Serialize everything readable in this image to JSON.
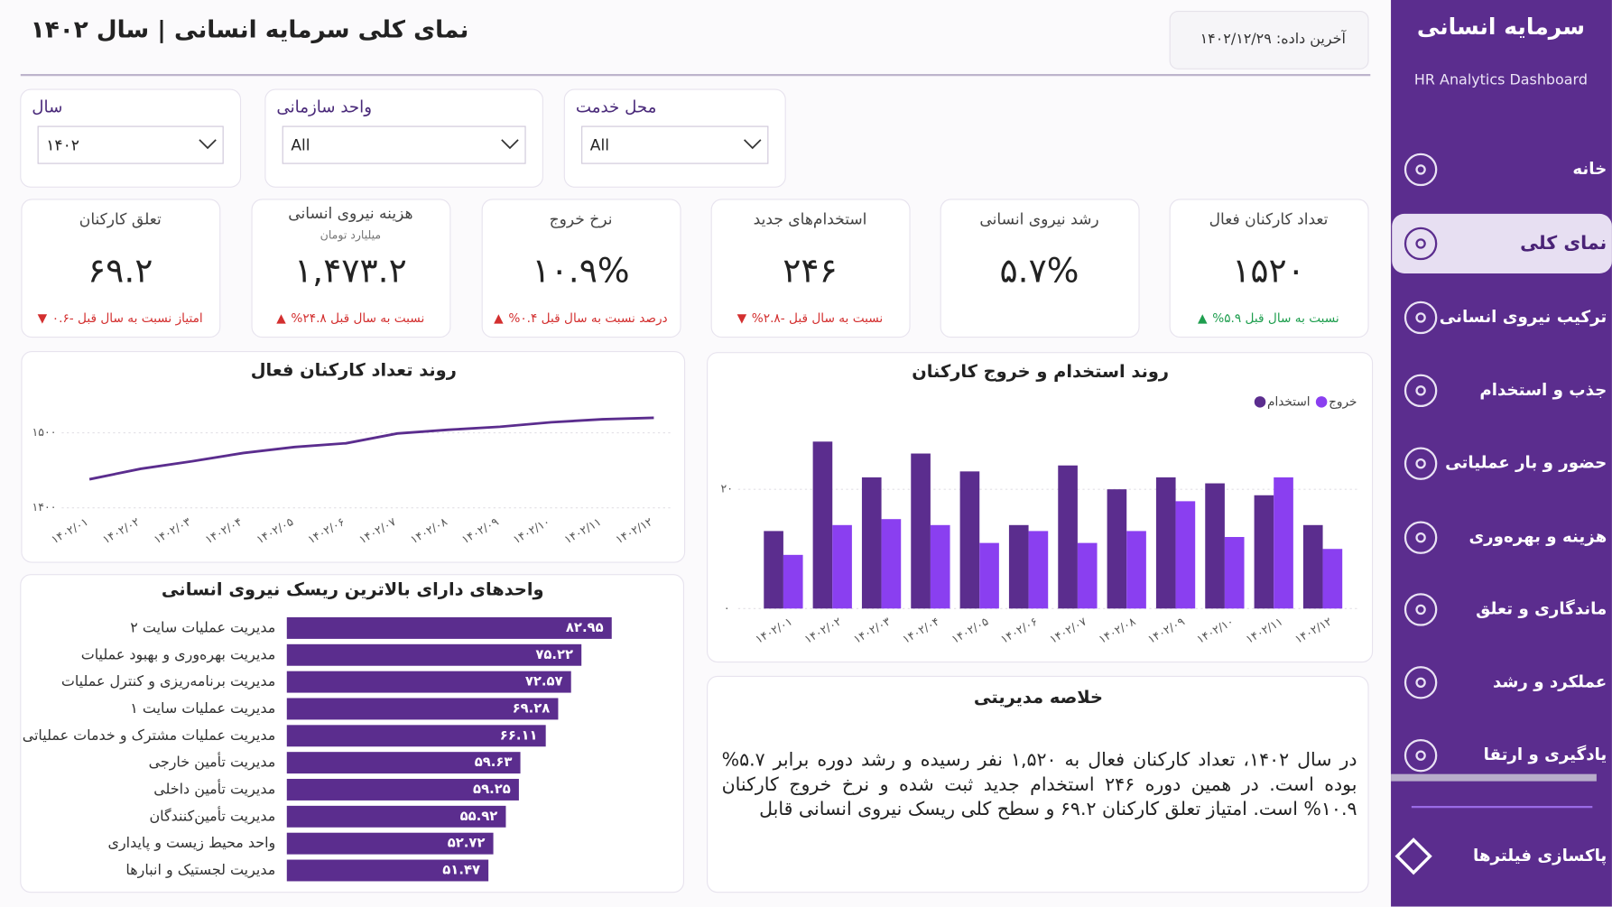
{
  "sidebar": {
    "title": "سرمایه انسانی",
    "subtitle": "HR Analytics Dashboard",
    "nav": [
      "خانه",
      "نمای کلی",
      "ترکیب نیروی انسانی",
      "جذب و استخدام",
      "حضور و بار عملیاتی",
      "هزینه و بهره‌وری",
      "ماندگاری و تعلق",
      "عملکرد و رشد",
      "یادگیری و ارتقا"
    ],
    "active": 1,
    "reset": "پاکسازی فیلترها"
  },
  "header": {
    "title": "نمای کلی سرمایه انسانی | سال ۱۴۰۲",
    "last_update": "آخرین داده: ۱۴۰۲/۱۲/۲۹"
  },
  "filters": [
    {
      "label": "محل خدمت",
      "value": "All"
    },
    {
      "label": "واحد سازمانی",
      "value": "All"
    },
    {
      "label": "سال",
      "value": "۱۴۰۲"
    }
  ],
  "kpis": [
    {
      "title": "تعداد کارکنان فعال",
      "value": "۱۵۲۰",
      "note": "نسبت به سال قبل ۵.۹%",
      "arrow": "▲",
      "color": "#1e9e4e"
    },
    {
      "title": "رشد نیروی انسانی",
      "value": "۵.۷%"
    },
    {
      "title": "استخدام‌های جدید",
      "value": "۲۴۶",
      "note": "نسبت به سال قبل -۲.۸%",
      "arrow": "▼",
      "color": "#d32f2f"
    },
    {
      "title": "نرخ خروج",
      "value": "۱۰.۹%",
      "note": "درصد نسبت به سال قبل ۰.۴%",
      "arrow": "▲",
      "color": "#d32f2f"
    },
    {
      "title": "هزینه نیروی انسانی",
      "subtitle": "میلیارد تومان",
      "value": "۱,۴۷۳.۲",
      "note": "نسبت به سال قبل ۲۴.۸%",
      "arrow": "▲",
      "color": "#d32f2f"
    },
    {
      "title": "تعلق کارکنان",
      "value": "۶۹.۲",
      "note": "امتیاز نسبت به سال قبل -۰.۶",
      "arrow": "▼",
      "color": "#d32f2f"
    }
  ],
  "chart_data": [
    {
      "type": "line",
      "title": "روند تعداد کارکنان فعال",
      "categories": [
        "۱۴۰۲/۰۱",
        "۱۴۰۲/۰۲",
        "۱۴۰۲/۰۳",
        "۱۴۰۲/۰۴",
        "۱۴۰۲/۰۵",
        "۱۴۰۲/۰۶",
        "۱۴۰۲/۰۷",
        "۱۴۰۲/۰۸",
        "۱۴۰۲/۰۹",
        "۱۴۰۲/۱۰",
        "۱۴۰۲/۱۱",
        "۱۴۰۲/۱۲"
      ],
      "values": [
        1438,
        1452,
        1462,
        1473,
        1481,
        1486,
        1499,
        1504,
        1508,
        1514,
        1518,
        1520
      ],
      "color": "#5b2d8e",
      "ylim": [
        1390,
        1530
      ],
      "yticks": [
        {
          "value": 1400,
          "label": "۱۴۰۰"
        },
        {
          "value": 1500,
          "label": "۱۵۰۰"
        }
      ],
      "grid": true
    },
    {
      "type": "bar",
      "title": "روند استخدام و خروج کارکنان",
      "categories": [
        "۱۴۰۲/۰۱",
        "۱۴۰۲/۰۲",
        "۱۴۰۲/۰۳",
        "۱۴۰۲/۰۴",
        "۱۴۰۲/۰۵",
        "۱۴۰۲/۰۶",
        "۱۴۰۲/۰۷",
        "۱۴۰۲/۰۸",
        "۱۴۰۲/۰۹",
        "۱۴۰۲/۱۰",
        "۱۴۰۲/۱۱",
        "۱۴۰۲/۱۲"
      ],
      "series": [
        {
          "name": "استخدام",
          "color": "#5b2d8e",
          "values": [
            13,
            28,
            22,
            26,
            23,
            14,
            24,
            20,
            22,
            21,
            19,
            14
          ]
        },
        {
          "name": "خروج",
          "color": "#8a3ff0",
          "values": [
            9,
            14,
            15,
            14,
            11,
            13,
            11,
            13,
            18,
            12,
            22,
            10
          ]
        }
      ],
      "ylim": [
        0,
        33
      ],
      "yticks": [
        {
          "value": 0,
          "label": "۰"
        },
        {
          "value": 20,
          "label": "۲۰"
        }
      ],
      "grid": true,
      "legend": "top-right"
    },
    {
      "type": "hbar",
      "title": "واحدهای دارای بالاترین ریسک نیروی انسانی",
      "categories": [
        "مدیریت عملیات سایت ۲",
        "مدیریت بهره‌وری و بهبود عملیات",
        "مدیریت برنامه‌ریزی و کنترل عملیات",
        "مدیریت عملیات سایت ۱",
        "مدیریت عملیات مشترک و خدمات عملیاتی",
        "مدیریت تأمین خارجی",
        "مدیریت تأمین داخلی",
        "مدیریت تأمین‌کنندگان",
        "واحد محیط زیست و پایداری",
        "مدیریت لجستیک و انبارها"
      ],
      "values": [
        82.95,
        75.22,
        72.57,
        69.28,
        66.11,
        59.63,
        59.25,
        55.92,
        52.72,
        51.47
      ],
      "value_labels": [
        "۸۲.۹۵",
        "۷۵.۲۲",
        "۷۲.۵۷",
        "۶۹.۲۸",
        "۶۶.۱۱",
        "۵۹.۶۳",
        "۵۹.۲۵",
        "۵۵.۹۲",
        "۵۲.۷۲",
        "۵۱.۴۷"
      ],
      "color": "#5b2d8e",
      "xlim": [
        0,
        100
      ]
    }
  ],
  "summary": {
    "title": "خلاصه مدیریتی",
    "text": "در سال ۱۴۰۲، تعداد کارکنان فعال به ۱,۵۲۰ نفر رسیده و رشد دوره برابر ۵.۷% بوده است. در همین دوره ۲۴۶ استخدام جدید ثبت شده و نرخ خروج کارکنان ۱۰.۹% است. امتیاز تعلق کارکنان ۶۹.۲ و سطح کلی ریسک نیروی انسانی قابل"
  }
}
